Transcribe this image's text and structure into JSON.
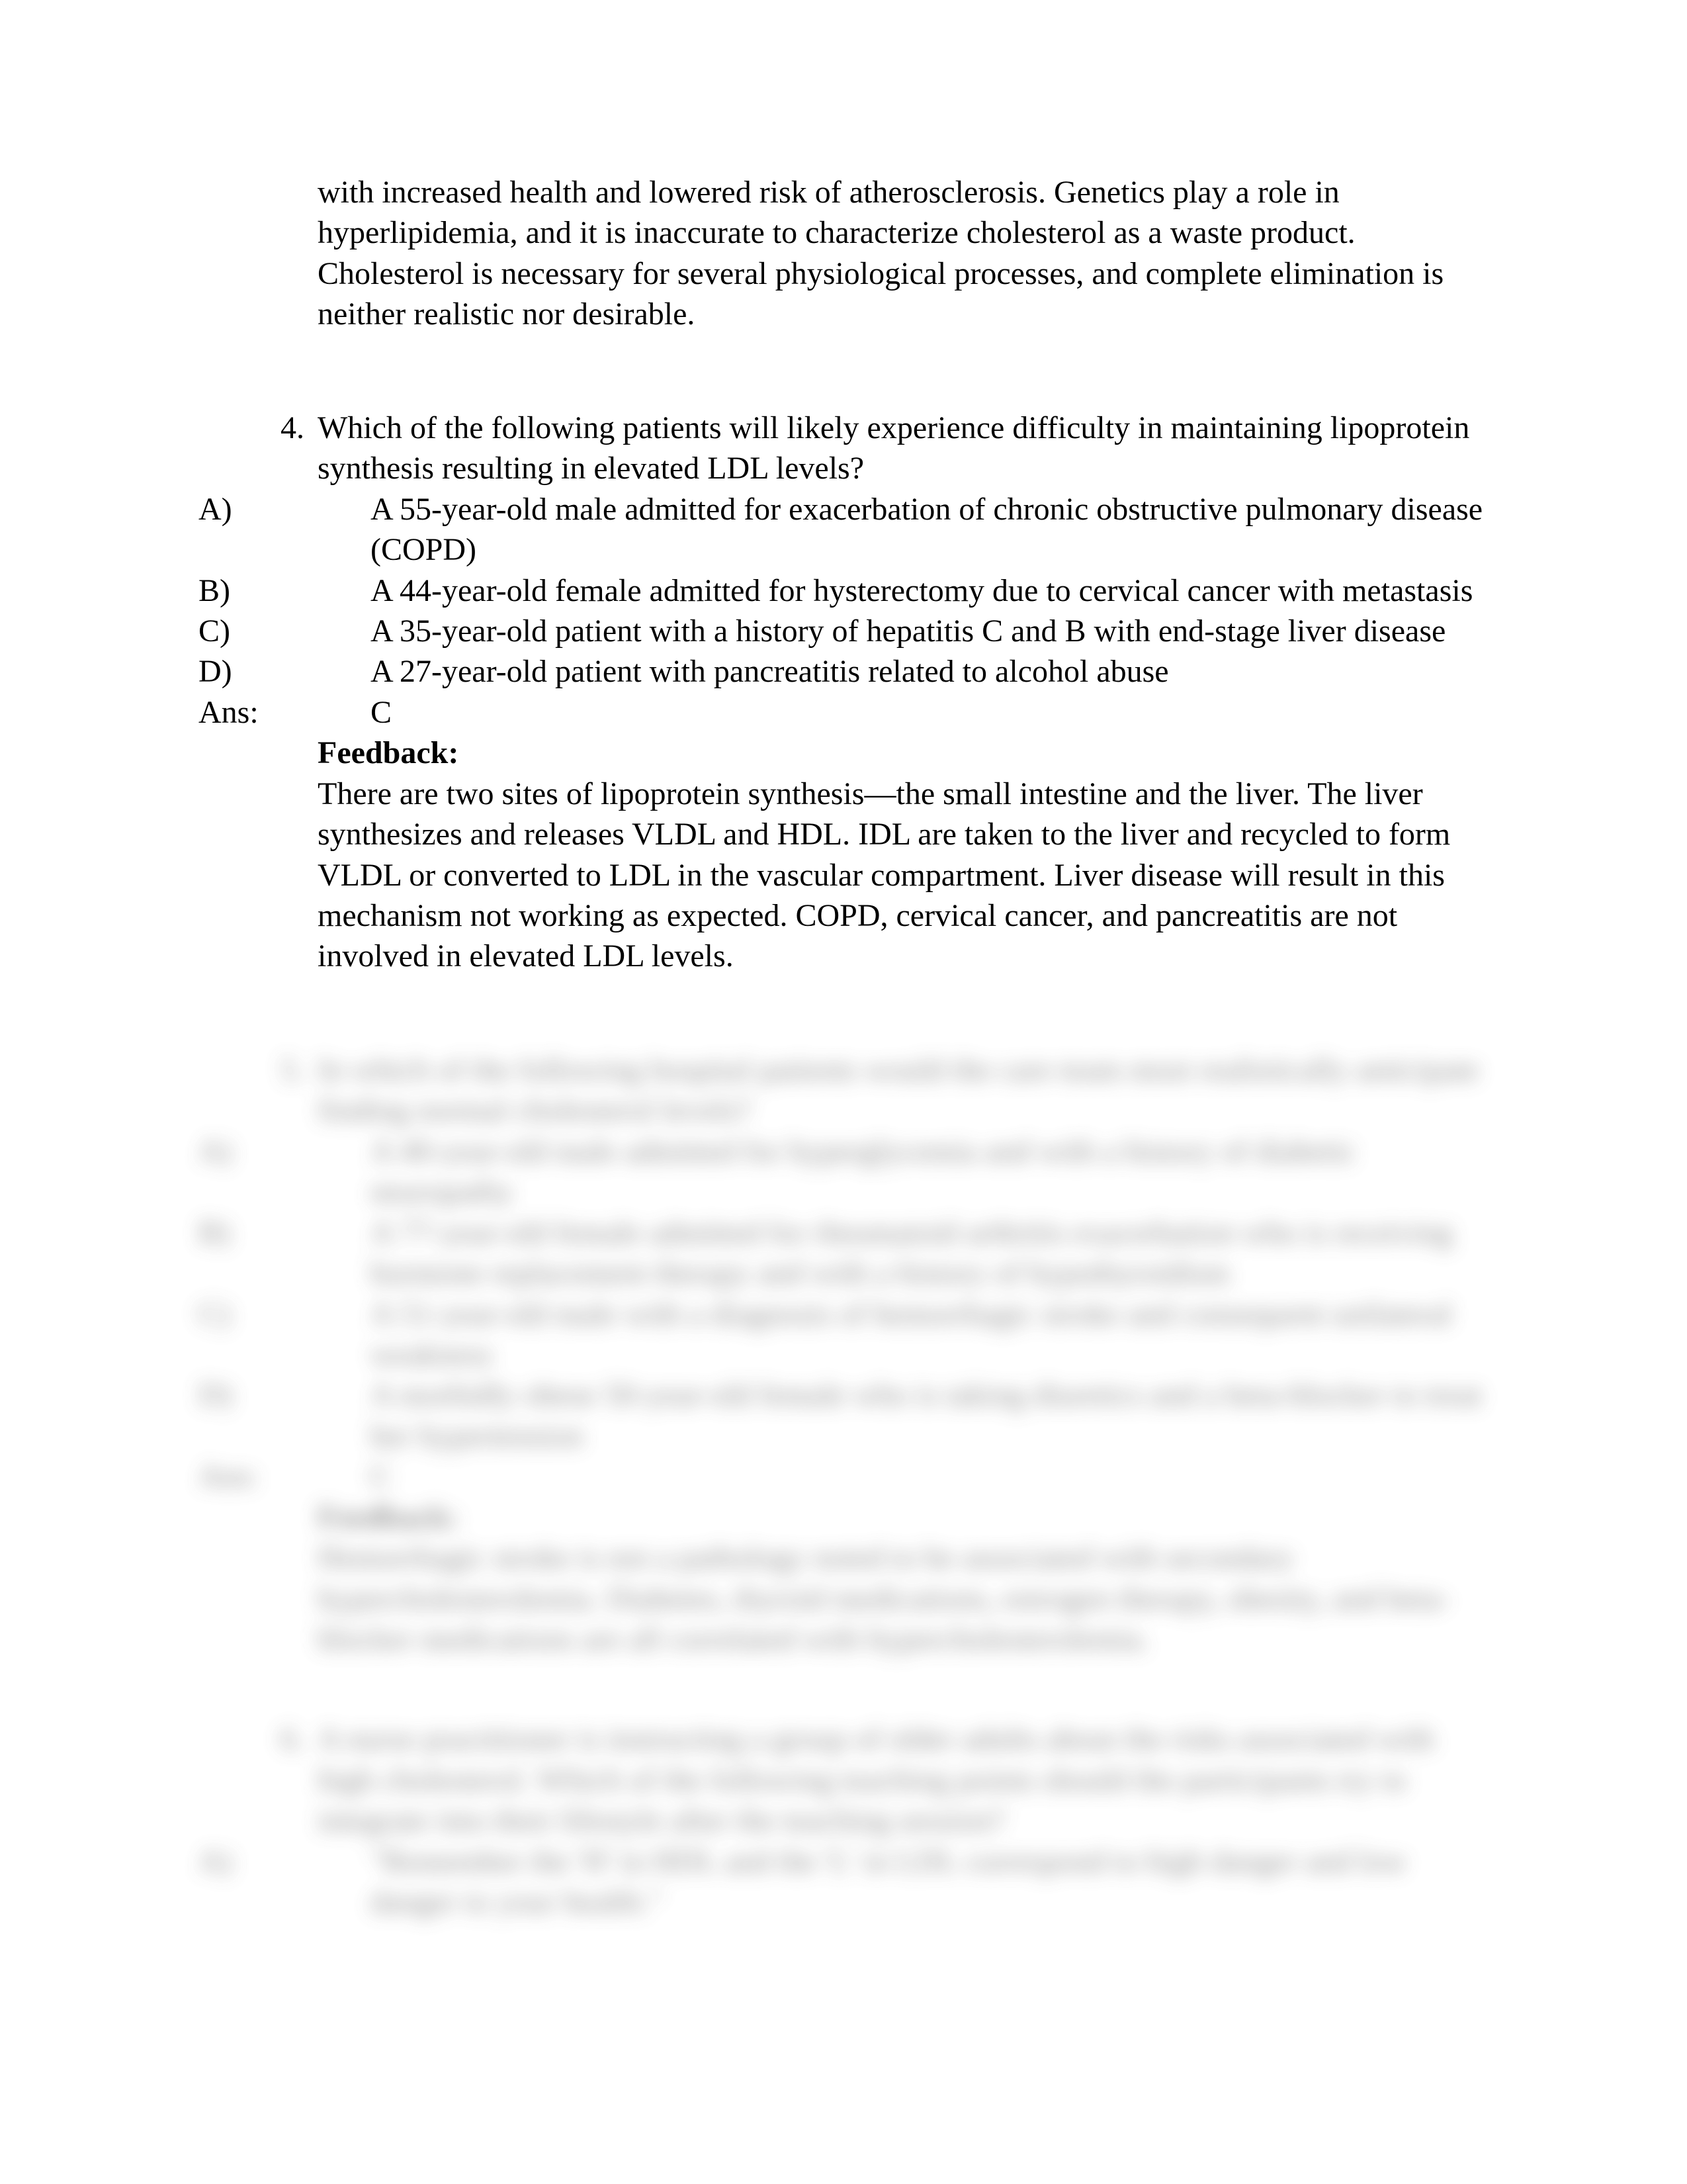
{
  "colors": {
    "text": "#000000",
    "background": "#ffffff",
    "blurred_text": "#6a6a6a"
  },
  "typography": {
    "font_family": "Times New Roman",
    "body_fontsize_pt": 36,
    "line_height": 1.28
  },
  "continuation_paragraph": "with increased health and lowered risk of atherosclerosis. Genetics play a role in hyperlipidemia, and it is inaccurate to characterize cholesterol as a waste product. Cholesterol is necessary for several physiological processes, and complete elimination is neither realistic nor desirable.",
  "q4": {
    "number": "4.",
    "question": "Which of the following patients will likely experience difficulty in maintaining lipoprotein synthesis resulting in elevated LDL levels?",
    "options": {
      "A": {
        "letter": "A)",
        "text": "A 55-year-old male admitted for exacerbation of chronic obstructive pulmonary disease (COPD)"
      },
      "B": {
        "letter": "B)",
        "text": "A 44-year-old female admitted for hysterectomy due to cervical cancer with metastasis"
      },
      "C": {
        "letter": "C)",
        "text": "A 35-year-old patient with a history of hepatitis C and B with end-stage liver disease"
      },
      "D": {
        "letter": "D)",
        "text": "A 27-year-old patient with pancreatitis related to alcohol abuse"
      }
    },
    "ans_label": "Ans:",
    "ans_value": "C",
    "feedback_label": "Feedback:",
    "feedback_body": "There are two sites of lipoprotein synthesis—the small intestine and the liver. The liver synthesizes and releases VLDL and HDL. IDL are taken to the liver and recycled to form VLDL or converted to LDL in the vascular compartment. Liver disease will result in this mechanism not working as expected. COPD, cervical cancer, and pancreatitis are not involved in elevated LDL levels."
  },
  "q5": {
    "number": "5.",
    "question": "In which of the following hospital patients would the care team most realistically anticipate finding normal cholesterol levels?",
    "options": {
      "A": {
        "letter": "A)",
        "text": "A 40-year-old male admitted for hyperglycemia and with a history of diabetic neuropathy"
      },
      "B": {
        "letter": "B)",
        "text": "A 77-year-old female admitted for rheumatoid arthritis exacerbation who is receiving hormone replacement therapy and with a history of hypothyroidism"
      },
      "C": {
        "letter": "C)",
        "text": "A 51-year-old male with a diagnosis of hemorrhagic stroke and consequent unilateral weakness"
      },
      "D": {
        "letter": "D)",
        "text": "A morbidly obese 50-year-old female who is taking diuretics and a beta-blocker to treat her hypertension"
      }
    },
    "ans_label": "Ans:",
    "ans_value": "C",
    "feedback_label": "Feedback:",
    "feedback_body": "Hemorrhagic stroke is not a pathology noted to be associated with secondary hypercholesterolemia. Diabetes, thyroid medications, estrogen therapy, obesity, and beta-blocker medications are all correlated with hypercholesterolemia."
  },
  "q6": {
    "number": "6.",
    "question": "A nurse practitioner is instructing a group of older adults about the risks associated with high cholesterol. Which of the following teaching points should the participants try to integrate into their lifestyle after the teaching session?",
    "options": {
      "A": {
        "letter": "A)",
        "text": "\"Remember the 'H' in HDL and the 'L' in LDL correspond to high danger and low danger to your health.\""
      }
    }
  }
}
